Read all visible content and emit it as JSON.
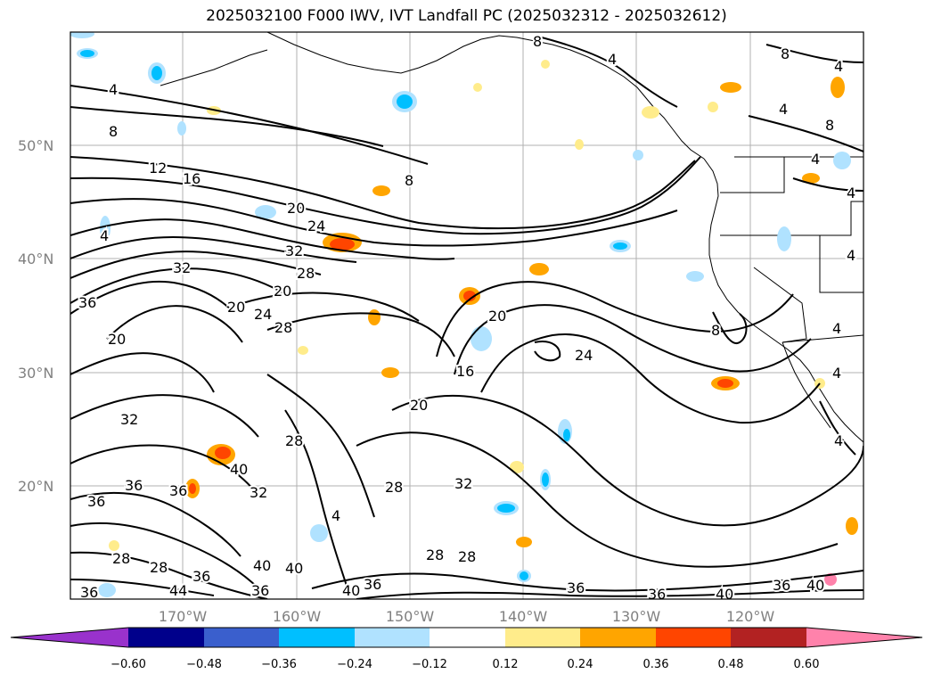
{
  "title": "2025032100 F000 IWV, IVT Landfall PC (2025032312 - 2025032612)",
  "lat_labels": [
    "50°N",
    "40°N",
    "30°N",
    "20°N"
  ],
  "lon_labels": [
    "170°W",
    "160°W",
    "150°W",
    "140°W",
    "130°W",
    "120°W"
  ],
  "contour_labels": {
    "c4": "4",
    "c8": "8",
    "c12": "12",
    "c16": "16",
    "c20": "20",
    "c24": "24",
    "c28": "28",
    "c32": "32",
    "c36": "36",
    "c40": "40",
    "c44": "44"
  },
  "colorbar": {
    "ticks": [
      "−0.60",
      "−0.48",
      "−0.36",
      "−0.24",
      "−0.12",
      "0.12",
      "0.24",
      "0.36",
      "0.48",
      "0.60"
    ],
    "colors": [
      "#9932cc",
      "#00008b",
      "#3a5fcd",
      "#00bfff",
      "#b0e2ff",
      "#ffffff",
      "#ffec8b",
      "#ffa500",
      "#ff4500",
      "#b22222",
      "#ff82ab"
    ]
  }
}
